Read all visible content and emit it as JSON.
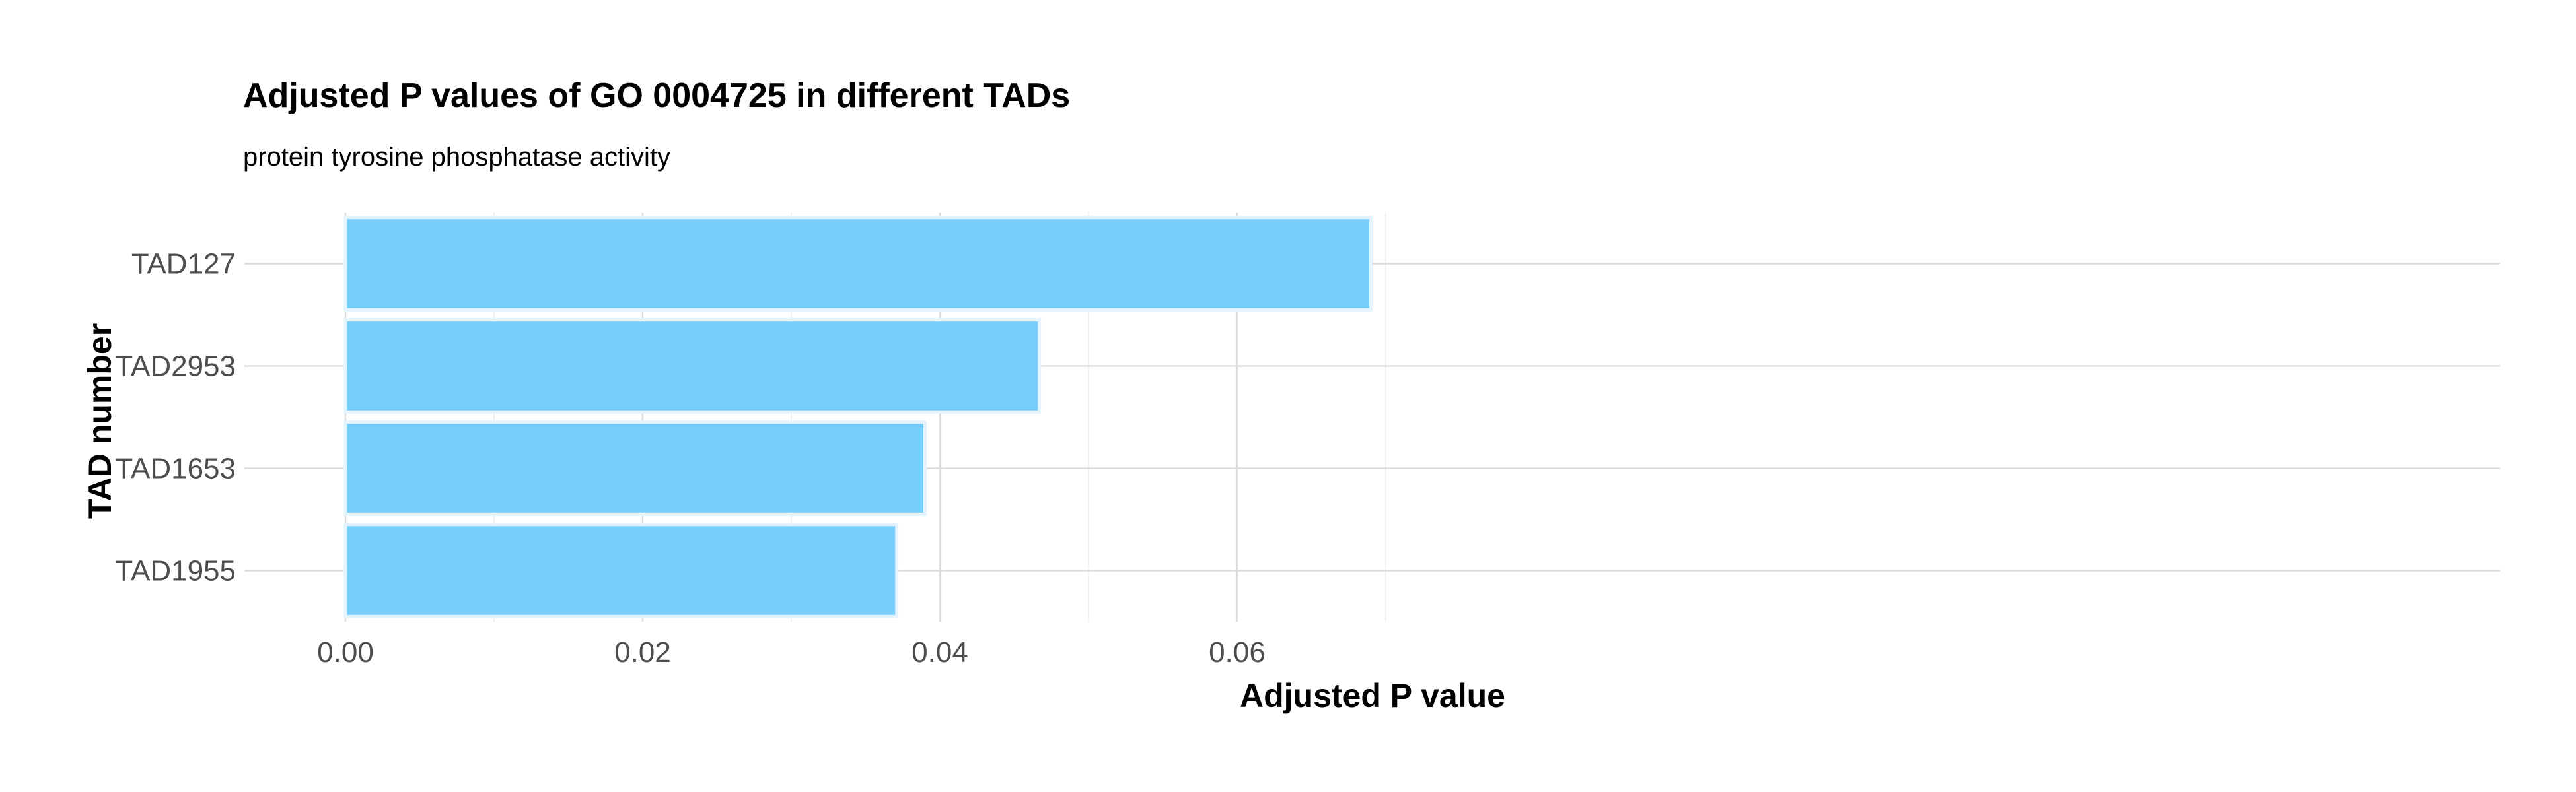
{
  "chart_data": {
    "type": "bar",
    "orientation": "horizontal",
    "title": "Adjusted P values of GO 0004725 in different TADs",
    "subtitle": "protein tyrosine phosphatase activity",
    "xlabel": "Adjusted P value",
    "ylabel": "TAD number",
    "categories": [
      "TAD127",
      "TAD2953",
      "TAD1653",
      "TAD1955"
    ],
    "values": [
      0.069,
      0.0467,
      0.039,
      0.0371
    ],
    "xlim": [
      0,
      0.0725
    ],
    "xticks": [
      0.0,
      0.02,
      0.04,
      0.06
    ],
    "xtick_labels": [
      "0.00",
      "0.02",
      "0.04",
      "0.06"
    ],
    "grid": true,
    "legend": "none",
    "bar_fill": "#74cdfb",
    "bar_outline": "#e4f4fe"
  }
}
